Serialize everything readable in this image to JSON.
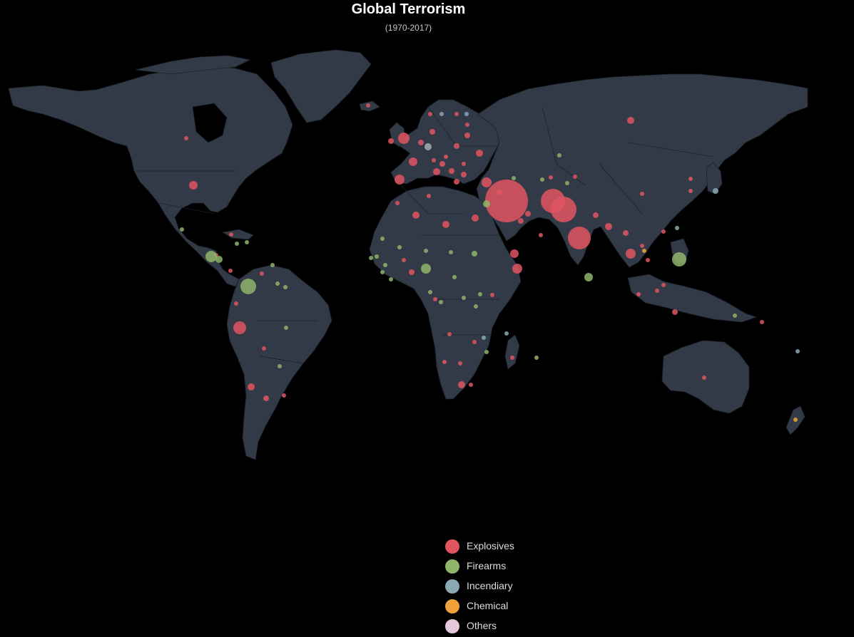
{
  "header": {
    "title": "Global Terrorism",
    "subtitle": "(1970-2017)"
  },
  "legend": {
    "items": [
      {
        "label": "Explosives",
        "color": "#e05560"
      },
      {
        "label": "Firearms",
        "color": "#8fb56a"
      },
      {
        "label": "Incendiary",
        "color": "#8aa9b3"
      },
      {
        "label": "Chemical",
        "color": "#f0a23a"
      },
      {
        "label": "Others",
        "color": "#e6c8dc"
      }
    ]
  },
  "map": {
    "land_color": "#323a47",
    "border_color": "#1c222b",
    "weapon_colors": {
      "Explosives": "#e05560",
      "Firearms": "#8fb56a",
      "Incendiary": "#8aa9b3",
      "Chemical": "#f0a23a",
      "Others": "#e6c8dc"
    }
  }
}
